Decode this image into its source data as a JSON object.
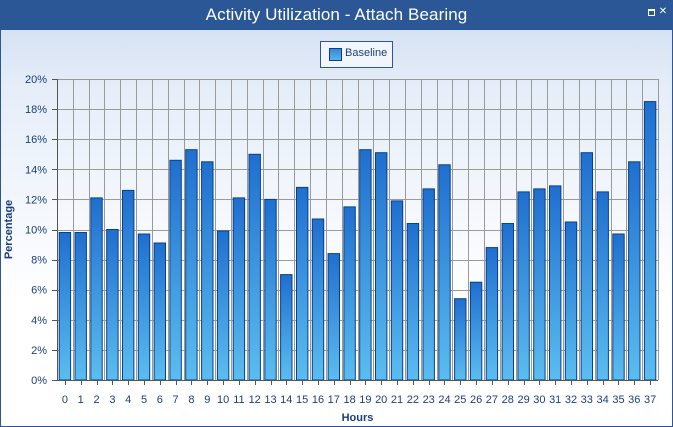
{
  "window": {
    "title": "Activity Utilization - Attach Bearing",
    "restore_icon": "restore-icon",
    "close_glyph": "✕"
  },
  "colors": {
    "titlebar": "#2b5797",
    "bar_top": "#1f6fcf",
    "bar_bottom": "#5bbdf0",
    "bar_stroke": "#0b3f86",
    "grid": "#9a9a9a",
    "text": "#1b3f78"
  },
  "chart_data": {
    "type": "bar",
    "xlabel": "Hours",
    "ylabel": "Percentage",
    "ylim": [
      0,
      20
    ],
    "yticks": [
      0,
      2,
      4,
      6,
      8,
      10,
      12,
      14,
      16,
      18,
      20
    ],
    "ytick_labels": [
      "0%",
      "2%",
      "4%",
      "6%",
      "8%",
      "10%",
      "12%",
      "14%",
      "16%",
      "18%",
      "20%"
    ],
    "grid": true,
    "legend": "top-center",
    "categories": [
      "0",
      "1",
      "2",
      "3",
      "4",
      "5",
      "6",
      "7",
      "8",
      "9",
      "10",
      "11",
      "12",
      "13",
      "14",
      "15",
      "16",
      "17",
      "18",
      "19",
      "20",
      "21",
      "22",
      "23",
      "24",
      "25",
      "26",
      "27",
      "28",
      "29",
      "30",
      "31",
      "32",
      "33",
      "34",
      "35",
      "36",
      "37"
    ],
    "series": [
      {
        "name": "Baseline",
        "values": [
          9.8,
          9.8,
          12.1,
          10.0,
          12.6,
          9.7,
          9.1,
          14.6,
          15.3,
          14.5,
          9.9,
          12.1,
          15.0,
          12.0,
          7.0,
          12.8,
          10.7,
          8.4,
          11.5,
          15.3,
          15.1,
          11.9,
          10.4,
          12.7,
          14.3,
          5.4,
          6.5,
          8.8,
          10.4,
          12.5,
          12.7,
          12.9,
          10.5,
          15.1,
          12.5,
          9.7,
          14.5,
          18.5
        ]
      }
    ]
  }
}
